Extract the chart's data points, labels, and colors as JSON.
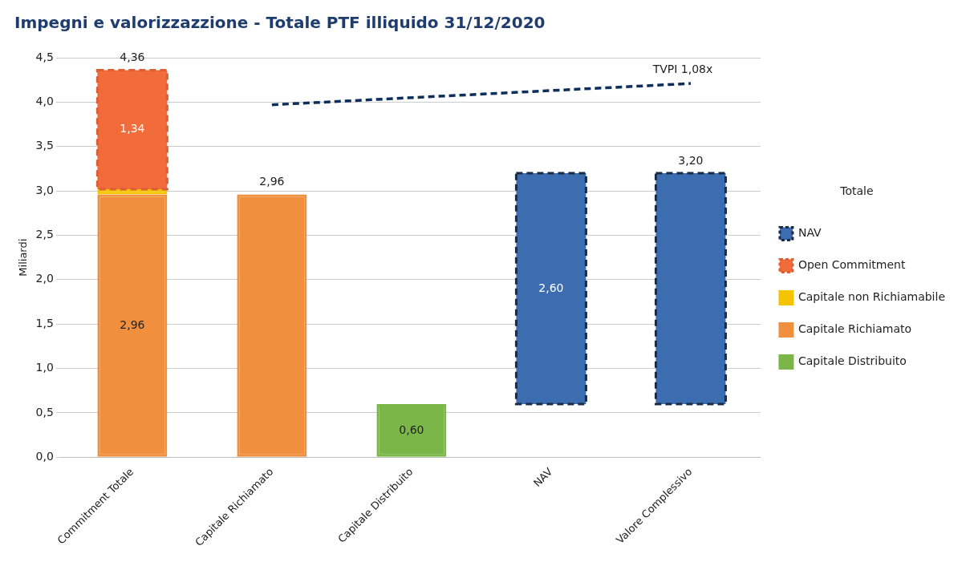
{
  "chart_data": {
    "type": "bar",
    "title": "Impegni e valorizzazzione - Totale PTF illiquido 31/12/2020",
    "ylabel": "Miliardi",
    "legend_title": "Totale",
    "categories": [
      "Commitment Totale",
      "Capitale Richiamato",
      "Capitale Distribuito",
      "NAV",
      "Valore Complessivo"
    ],
    "stacked": true,
    "ylim": [
      0,
      4.5
    ],
    "yticks": [
      {
        "value": 0,
        "label": "0,0"
      },
      {
        "value": 0.5,
        "label": "0,5"
      },
      {
        "value": 1,
        "label": "1,0"
      },
      {
        "value": 1.5,
        "label": "1,5"
      },
      {
        "value": 2,
        "label": "2,0"
      },
      {
        "value": 2.5,
        "label": "2,5"
      },
      {
        "value": 3,
        "label": "3,0"
      },
      {
        "value": 3.5,
        "label": "3,5"
      },
      {
        "value": 4,
        "label": "4,0"
      },
      {
        "value": 4.5,
        "label": "4,5"
      }
    ],
    "grid": "y",
    "legend": "right",
    "totals": [
      "4,36",
      "2,96",
      null,
      null,
      null
    ],
    "annotations": [
      {
        "text": "3,20",
        "x": "Valore Complessivo",
        "y": 3.2
      }
    ],
    "series": [
      {
        "name": "Capitale Distribuito",
        "color": "#7ab648",
        "values": [
          null,
          null,
          0.6,
          null,
          null
        ],
        "value_labels": [
          null,
          null,
          "0,60",
          null,
          null
        ]
      },
      {
        "name": "Capitale Richiamato",
        "color": "#f0903e",
        "values": [
          2.96,
          2.96,
          null,
          null,
          null
        ],
        "value_labels": [
          "2,96",
          null,
          null,
          null,
          null
        ]
      },
      {
        "name": "Capitale non Richiamabile",
        "color": "#f5c400",
        "values": [
          0.06,
          null,
          null,
          null,
          null
        ]
      },
      {
        "name": "Open Commitment",
        "color": "#f26b3a",
        "line_style": "dashed",
        "values": [
          1.34,
          null,
          null,
          null,
          null
        ],
        "value_labels": [
          "1,34",
          null,
          null,
          null,
          null
        ]
      },
      {
        "name": "NAV",
        "color": "#3b6db0",
        "line_style": "dashed",
        "values": [
          null,
          null,
          null,
          2.6,
          2.6
        ],
        "base": [
          null,
          null,
          null,
          0.6,
          0.6
        ],
        "value_labels": [
          null,
          null,
          null,
          "2,60",
          null
        ]
      },
      {
        "name": "TVPI 1,08x",
        "type": "line",
        "color": "#0d2d5a",
        "line_style": "dashed",
        "marker": "none",
        "values": [
          null,
          3.97,
          null,
          null,
          4.21
        ]
      }
    ]
  }
}
